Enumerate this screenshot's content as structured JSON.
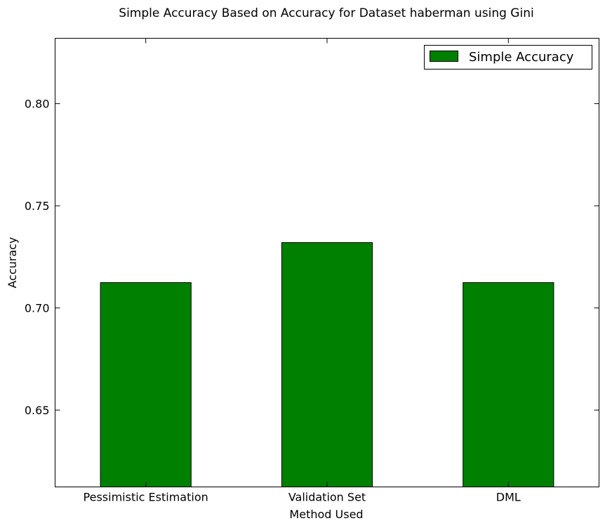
{
  "chart_data": {
    "type": "bar",
    "title": "Simple Accuracy Based on Accuracy for Dataset haberman using Gini",
    "xlabel": "Method Used",
    "ylabel": "Accuracy",
    "categories": [
      "Pessimistic Estimation",
      "Validation Set",
      "DML"
    ],
    "series": [
      {
        "name": "Simple Accuracy",
        "values": [
          0.7124,
          0.732,
          0.7124
        ],
        "color": "#008000"
      }
    ],
    "ylim": [
      0.6124,
      0.832
    ],
    "yticks": [
      0.65,
      0.7,
      0.75,
      0.8
    ],
    "ytick_labels": [
      "0.65",
      "0.70",
      "0.75",
      "0.80"
    ],
    "legend_position": "top-right",
    "grid": false
  }
}
